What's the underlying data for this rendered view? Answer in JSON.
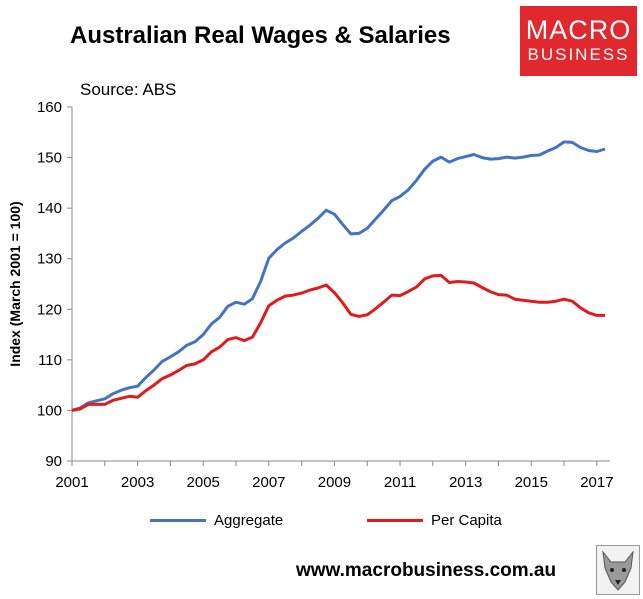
{
  "title": "Australian Real Wages & Salaries",
  "logo": {
    "line1": "MACRO",
    "line2": "BUSINESS",
    "bg_color": "#e0282e"
  },
  "source": "Source: ABS",
  "footer_url": "www.macrobusiness.com.au",
  "watermark_icon": "wolf-icon",
  "chart_data": {
    "type": "line",
    "title": "Australian Real Wages & Salaries",
    "xlabel": "",
    "ylabel": "Index (March 2001 = 100)",
    "xlim": [
      2001,
      2017.4
    ],
    "ylim": [
      90,
      160
    ],
    "yticks": [
      90,
      100,
      110,
      120,
      130,
      140,
      150,
      160
    ],
    "xticks": [
      2001,
      2003,
      2005,
      2007,
      2009,
      2011,
      2013,
      2015,
      2017
    ],
    "grid": false,
    "legend_position": "bottom",
    "series": [
      {
        "name": "Aggregate",
        "color": "#4472c4",
        "points": [
          [
            2001.0,
            100.0
          ],
          [
            2001.25,
            100.5
          ],
          [
            2001.5,
            101.5
          ],
          [
            2001.75,
            101.9
          ],
          [
            2002.0,
            102.3
          ],
          [
            2002.25,
            103.3
          ],
          [
            2002.5,
            104.0
          ],
          [
            2002.75,
            104.5
          ],
          [
            2003.0,
            104.8
          ],
          [
            2003.25,
            106.5
          ],
          [
            2003.5,
            108.0
          ],
          [
            2003.75,
            109.7
          ],
          [
            2004.0,
            110.6
          ],
          [
            2004.25,
            111.6
          ],
          [
            2004.5,
            112.9
          ],
          [
            2004.75,
            113.6
          ],
          [
            2005.0,
            115.0
          ],
          [
            2005.25,
            117.1
          ],
          [
            2005.5,
            118.4
          ],
          [
            2005.75,
            120.6
          ],
          [
            2006.0,
            121.4
          ],
          [
            2006.25,
            121.0
          ],
          [
            2006.5,
            122.1
          ],
          [
            2006.75,
            125.5
          ],
          [
            2007.0,
            130.1
          ],
          [
            2007.25,
            131.8
          ],
          [
            2007.5,
            133.1
          ],
          [
            2007.75,
            134.1
          ],
          [
            2008.0,
            135.4
          ],
          [
            2008.25,
            136.6
          ],
          [
            2008.5,
            138.0
          ],
          [
            2008.75,
            139.6
          ],
          [
            2009.0,
            138.8
          ],
          [
            2009.25,
            136.8
          ],
          [
            2009.5,
            134.9
          ],
          [
            2009.75,
            135.0
          ],
          [
            2010.0,
            136.0
          ],
          [
            2010.25,
            137.8
          ],
          [
            2010.5,
            139.6
          ],
          [
            2010.75,
            141.5
          ],
          [
            2011.0,
            142.3
          ],
          [
            2011.25,
            143.6
          ],
          [
            2011.5,
            145.5
          ],
          [
            2011.75,
            147.7
          ],
          [
            2012.0,
            149.3
          ],
          [
            2012.25,
            150.1
          ],
          [
            2012.5,
            149.1
          ],
          [
            2012.75,
            149.8
          ],
          [
            2013.0,
            150.2
          ],
          [
            2013.25,
            150.6
          ],
          [
            2013.5,
            150.0
          ],
          [
            2013.75,
            149.7
          ],
          [
            2014.0,
            149.8
          ],
          [
            2014.25,
            150.1
          ],
          [
            2014.5,
            149.9
          ],
          [
            2014.75,
            150.1
          ],
          [
            2015.0,
            150.4
          ],
          [
            2015.25,
            150.5
          ],
          [
            2015.5,
            151.3
          ],
          [
            2015.75,
            152.0
          ],
          [
            2016.0,
            153.1
          ],
          [
            2016.25,
            153.0
          ],
          [
            2016.5,
            152.0
          ],
          [
            2016.75,
            151.4
          ],
          [
            2017.0,
            151.2
          ],
          [
            2017.25,
            151.7
          ]
        ]
      },
      {
        "name": "Per Capita",
        "color": "#e31a1c",
        "points": [
          [
            2001.0,
            100.0
          ],
          [
            2001.25,
            100.3
          ],
          [
            2001.5,
            101.2
          ],
          [
            2001.75,
            101.2
          ],
          [
            2002.0,
            101.2
          ],
          [
            2002.25,
            102.0
          ],
          [
            2002.5,
            102.4
          ],
          [
            2002.75,
            102.8
          ],
          [
            2003.0,
            102.6
          ],
          [
            2003.25,
            103.9
          ],
          [
            2003.5,
            105.0
          ],
          [
            2003.75,
            106.3
          ],
          [
            2004.0,
            107.0
          ],
          [
            2004.25,
            107.9
          ],
          [
            2004.5,
            108.9
          ],
          [
            2004.75,
            109.2
          ],
          [
            2005.0,
            110.0
          ],
          [
            2005.25,
            111.6
          ],
          [
            2005.5,
            112.5
          ],
          [
            2005.75,
            114.0
          ],
          [
            2006.0,
            114.4
          ],
          [
            2006.25,
            113.8
          ],
          [
            2006.5,
            114.5
          ],
          [
            2006.75,
            117.3
          ],
          [
            2007.0,
            120.7
          ],
          [
            2007.25,
            121.8
          ],
          [
            2007.5,
            122.6
          ],
          [
            2007.75,
            122.8
          ],
          [
            2008.0,
            123.2
          ],
          [
            2008.25,
            123.8
          ],
          [
            2008.5,
            124.2
          ],
          [
            2008.75,
            124.8
          ],
          [
            2009.0,
            123.3
          ],
          [
            2009.25,
            121.3
          ],
          [
            2009.5,
            119.0
          ],
          [
            2009.75,
            118.6
          ],
          [
            2010.0,
            118.9
          ],
          [
            2010.25,
            120.1
          ],
          [
            2010.5,
            121.4
          ],
          [
            2010.75,
            122.8
          ],
          [
            2011.0,
            122.7
          ],
          [
            2011.25,
            123.5
          ],
          [
            2011.5,
            124.4
          ],
          [
            2011.75,
            126.0
          ],
          [
            2012.0,
            126.6
          ],
          [
            2012.25,
            126.7
          ],
          [
            2012.5,
            125.3
          ],
          [
            2012.75,
            125.5
          ],
          [
            2013.0,
            125.4
          ],
          [
            2013.25,
            125.2
          ],
          [
            2013.5,
            124.3
          ],
          [
            2013.75,
            123.5
          ],
          [
            2014.0,
            122.9
          ],
          [
            2014.25,
            122.8
          ],
          [
            2014.5,
            122.0
          ],
          [
            2014.75,
            121.8
          ],
          [
            2015.0,
            121.6
          ],
          [
            2015.25,
            121.4
          ],
          [
            2015.5,
            121.4
          ],
          [
            2015.75,
            121.6
          ],
          [
            2016.0,
            122.0
          ],
          [
            2016.25,
            121.6
          ],
          [
            2016.5,
            120.3
          ],
          [
            2016.75,
            119.3
          ],
          [
            2017.0,
            118.8
          ],
          [
            2017.25,
            118.8
          ]
        ]
      }
    ]
  }
}
